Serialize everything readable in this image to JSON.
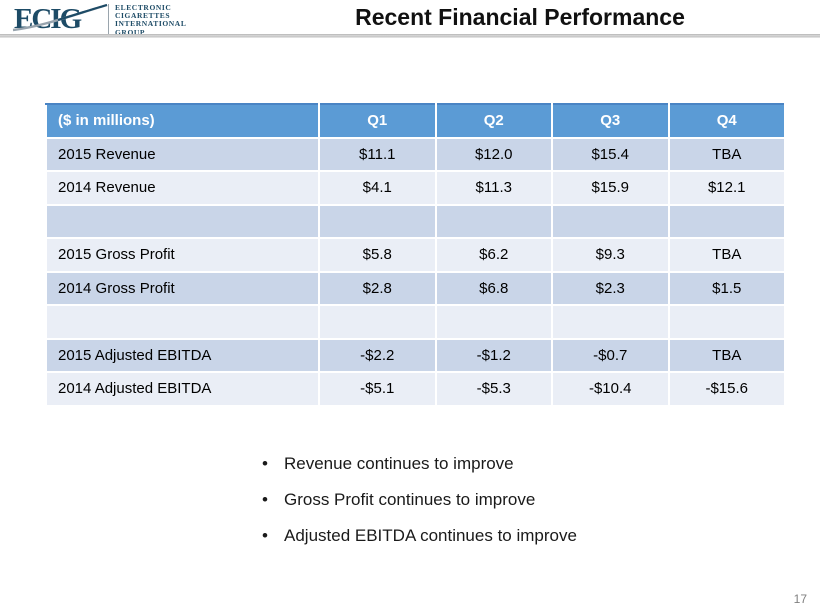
{
  "slide": {
    "title": "Recent Financial Performance",
    "page_number": "17"
  },
  "logo": {
    "acronym": "ECIG",
    "lines": [
      "ELECTRONIC",
      "CIGARETTES",
      "INTERNATIONAL",
      "GROUP"
    ]
  },
  "table": {
    "header": [
      "($ in millions)",
      "Q1",
      "Q2",
      "Q3",
      "Q4"
    ],
    "rows": [
      {
        "label": "2015 Revenue",
        "values": [
          "$11.1",
          "$12.0",
          "$15.4",
          "TBA"
        ],
        "band": "dark"
      },
      {
        "label": "2014 Revenue",
        "values": [
          "$4.1",
          "$11.3",
          "$15.9",
          "$12.1"
        ],
        "band": "light"
      },
      {
        "label": "",
        "values": [
          "",
          "",
          "",
          ""
        ],
        "band": "dark"
      },
      {
        "label": "2015 Gross Profit",
        "values": [
          "$5.8",
          "$6.2",
          "$9.3",
          "TBA"
        ],
        "band": "light"
      },
      {
        "label": "2014 Gross Profit",
        "values": [
          "$2.8",
          "$6.8",
          "$2.3",
          "$1.5"
        ],
        "band": "dark"
      },
      {
        "label": "",
        "values": [
          "",
          "",
          "",
          ""
        ],
        "band": "light"
      },
      {
        "label": "2015 Adjusted EBITDA",
        "values": [
          "-$2.2",
          "-$1.2",
          "-$0.7",
          "TBA"
        ],
        "band": "dark"
      },
      {
        "label": "2014 Adjusted EBITDA",
        "values": [
          "-$5.1",
          "-$5.3",
          "-$10.4",
          "-$15.6"
        ],
        "band": "light"
      }
    ]
  },
  "bullets": [
    "Revenue continues to improve",
    "Gross Profit continues to improve",
    "Adjusted EBITDA continues to improve"
  ],
  "colors": {
    "header_bg": "#5B9BD5",
    "band_dark": "#C9D5E8",
    "band_light": "#EAEEF6",
    "logo": "#1D4B66",
    "rule": "#C6C6C6",
    "page_number": "#7F7F7F"
  }
}
